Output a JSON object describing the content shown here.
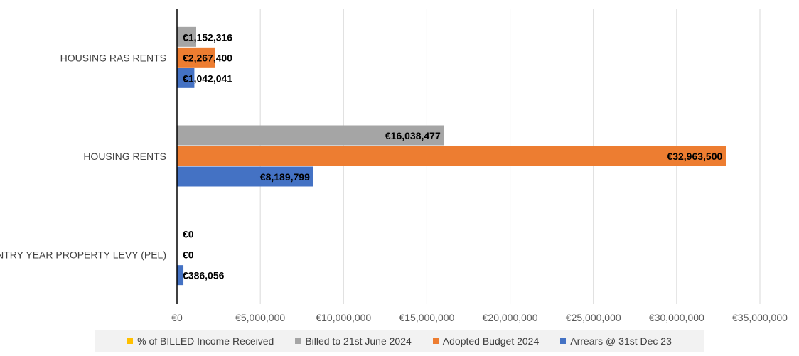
{
  "chart_data": {
    "type": "bar",
    "orientation": "horizontal",
    "title": "",
    "xlabel": "",
    "ylabel": "",
    "xlim": [
      0,
      35000000
    ],
    "x_ticks": [
      0,
      5000000,
      10000000,
      15000000,
      20000000,
      25000000,
      30000000,
      35000000
    ],
    "x_tick_labels": [
      "€0",
      "€5,000,000",
      "€10,000,000",
      "€15,000,000",
      "€20,000,000",
      "€25,000,000",
      "€30,000,000",
      "€35,000,000"
    ],
    "grid": "vertical",
    "categories": [
      "HOUSING RAS RENTS",
      "HOUSING RENTS",
      "ENTRY YEAR PROPERTY LEVY (PEL)"
    ],
    "series": [
      {
        "name": "% of BILLED Income Received",
        "color": "#ffc000",
        "values": [
          null,
          null,
          null
        ],
        "labels": [
          "",
          "",
          ""
        ]
      },
      {
        "name": "Billed to 21st June 2024",
        "color": "#a5a5a5",
        "values": [
          1152316,
          16038477,
          0
        ],
        "labels": [
          "€1,152,316",
          "€16,038,477",
          "€0"
        ]
      },
      {
        "name": "Adopted Budget 2024",
        "color": "#ed7d31",
        "values": [
          2267400,
          32963500,
          0
        ],
        "labels": [
          "€2,267,400",
          "€32,963,500",
          "€0"
        ]
      },
      {
        "name": "Arrears @ 31st Dec 23",
        "color": "#4472c4",
        "values": [
          1042041,
          8189799,
          386056
        ],
        "labels": [
          "€1,042,041",
          "€8,189,799",
          "€386,056"
        ]
      }
    ],
    "legend_position": "bottom"
  }
}
